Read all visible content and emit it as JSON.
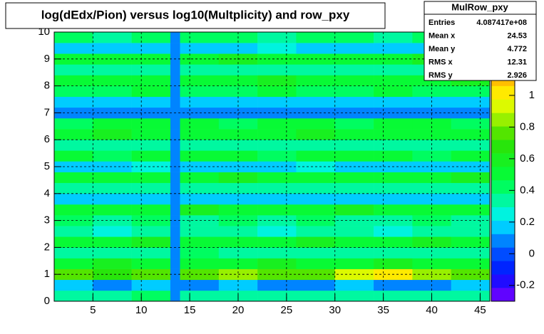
{
  "chart_data": {
    "type": "heatmap",
    "title": "log(dEdx/Pion) versus log10(Multplicity) and row_pxy",
    "xbins": [
      1,
      5,
      9,
      13,
      14,
      18,
      22,
      26,
      30,
      34,
      38,
      42,
      46
    ],
    "ybins": [
      0,
      0.4,
      0.8,
      1.2,
      1.6,
      2,
      2.4,
      2.8,
      3.2,
      3.6,
      4,
      4.4,
      4.8,
      5.2,
      5.6,
      6,
      6.4,
      6.8,
      7.2,
      7.6,
      8,
      8.4,
      8.8,
      9.2,
      9.6,
      10
    ],
    "z": [
      [
        0.35,
        0.3,
        0.4,
        0.05,
        0.35,
        0.3,
        0.35,
        0.3,
        0.35,
        0.3,
        0.35,
        0.3
      ],
      [
        0.15,
        0.1,
        0.15,
        0.05,
        0.1,
        0.15,
        0.1,
        0.1,
        0.15,
        0.1,
        0.1,
        0.15
      ],
      [
        0.75,
        0.7,
        0.8,
        0.05,
        0.75,
        0.85,
        0.8,
        0.8,
        0.9,
        1.0,
        0.85,
        0.8
      ],
      [
        0.5,
        0.55,
        0.5,
        0.05,
        0.5,
        0.5,
        0.55,
        0.5,
        0.5,
        0.55,
        0.5,
        0.5
      ],
      [
        0.35,
        0.3,
        0.35,
        0.05,
        0.4,
        0.35,
        0.3,
        0.35,
        0.3,
        0.35,
        0.35,
        0.3
      ],
      [
        0.5,
        0.5,
        0.55,
        0.05,
        0.5,
        0.5,
        0.5,
        0.55,
        0.5,
        0.5,
        0.55,
        0.5
      ],
      [
        0.3,
        0.25,
        0.3,
        0.05,
        0.3,
        0.3,
        0.25,
        0.3,
        0.3,
        0.25,
        0.3,
        0.3
      ],
      [
        0.4,
        0.35,
        0.4,
        0.05,
        0.35,
        0.4,
        0.35,
        0.4,
        0.35,
        0.35,
        0.4,
        0.35
      ],
      [
        0.5,
        0.5,
        0.5,
        0.05,
        0.55,
        0.5,
        0.5,
        0.5,
        0.55,
        0.5,
        0.5,
        0.5
      ],
      [
        0.15,
        0.15,
        0.2,
        0.05,
        0.15,
        0.15,
        0.15,
        0.2,
        0.15,
        0.15,
        0.15,
        0.15
      ],
      [
        0.3,
        0.35,
        0.3,
        0.05,
        0.3,
        0.3,
        0.35,
        0.3,
        0.3,
        0.3,
        0.35,
        0.3
      ],
      [
        0.5,
        0.5,
        0.5,
        0.05,
        0.5,
        0.55,
        0.5,
        0.5,
        0.5,
        0.5,
        0.5,
        0.55
      ],
      [
        0.2,
        0.2,
        0.25,
        0.05,
        0.2,
        0.2,
        0.2,
        0.25,
        0.2,
        0.2,
        0.2,
        0.2
      ],
      [
        0.5,
        0.45,
        0.5,
        0.05,
        0.5,
        0.5,
        0.45,
        0.5,
        0.5,
        0.5,
        0.45,
        0.5
      ],
      [
        0.3,
        0.3,
        0.3,
        0.05,
        0.3,
        0.35,
        0.3,
        0.3,
        0.3,
        0.3,
        0.3,
        0.35
      ],
      [
        0.5,
        0.55,
        0.5,
        0.05,
        0.5,
        0.5,
        0.5,
        0.55,
        0.5,
        0.5,
        0.5,
        0.5
      ],
      [
        0.45,
        0.5,
        0.5,
        0.05,
        0.5,
        0.45,
        0.5,
        0.5,
        0.45,
        0.5,
        0.5,
        0.45
      ],
      [
        0.05,
        0.05,
        0.05,
        0.05,
        0.05,
        0.05,
        0.05,
        0.05,
        0.05,
        0.05,
        0.05,
        0.05
      ],
      [
        0.15,
        0.15,
        0.15,
        0.05,
        0.15,
        0.2,
        0.15,
        0.15,
        0.15,
        0.15,
        0.2,
        0.15
      ],
      [
        0.45,
        0.45,
        0.5,
        0.05,
        0.45,
        0.45,
        0.5,
        0.45,
        0.45,
        0.5,
        0.45,
        0.45
      ],
      [
        0.5,
        0.5,
        0.5,
        0.05,
        0.5,
        0.5,
        0.55,
        0.5,
        0.5,
        0.5,
        0.5,
        0.55
      ],
      [
        0.3,
        0.3,
        0.35,
        0.05,
        0.3,
        0.3,
        0.3,
        0.3,
        0.35,
        0.3,
        0.3,
        0.3
      ],
      [
        0.5,
        0.5,
        0.5,
        0.05,
        0.5,
        0.55,
        0.5,
        0.5,
        0.5,
        0.5,
        0.55,
        0.5
      ],
      [
        0.2,
        0.2,
        0.2,
        0.05,
        0.2,
        0.2,
        0.25,
        0.2,
        0.2,
        0.2,
        0.2,
        0.2
      ],
      [
        0.4,
        0.35,
        0.4,
        0.05,
        0.4,
        0.4,
        0.35,
        0.4,
        0.4,
        0.35,
        0.4,
        0.4
      ]
    ],
    "xlim": [
      1,
      46
    ],
    "xticks": [
      5,
      10,
      15,
      20,
      25,
      30,
      35,
      40,
      45
    ],
    "ylim": [
      0,
      10
    ],
    "yticks": [
      0,
      1,
      2,
      3,
      4,
      5,
      6,
      7,
      8,
      9,
      10
    ],
    "zlim": [
      -0.3,
      1.4
    ],
    "zticks": [
      -0.2,
      0,
      0.2,
      0.4,
      0.6,
      0.8,
      1
    ],
    "grid": true,
    "stats": {
      "title": "MulRow_pxy",
      "rows": [
        {
          "label": "Entries",
          "value": "4.087417e+08"
        },
        {
          "label": "Mean x",
          "value": "24.53"
        },
        {
          "label": "Mean y",
          "value": "4.772"
        },
        {
          "label": "RMS x",
          "value": "12.31"
        },
        {
          "label": "RMS y",
          "value": "2.926"
        }
      ]
    }
  }
}
